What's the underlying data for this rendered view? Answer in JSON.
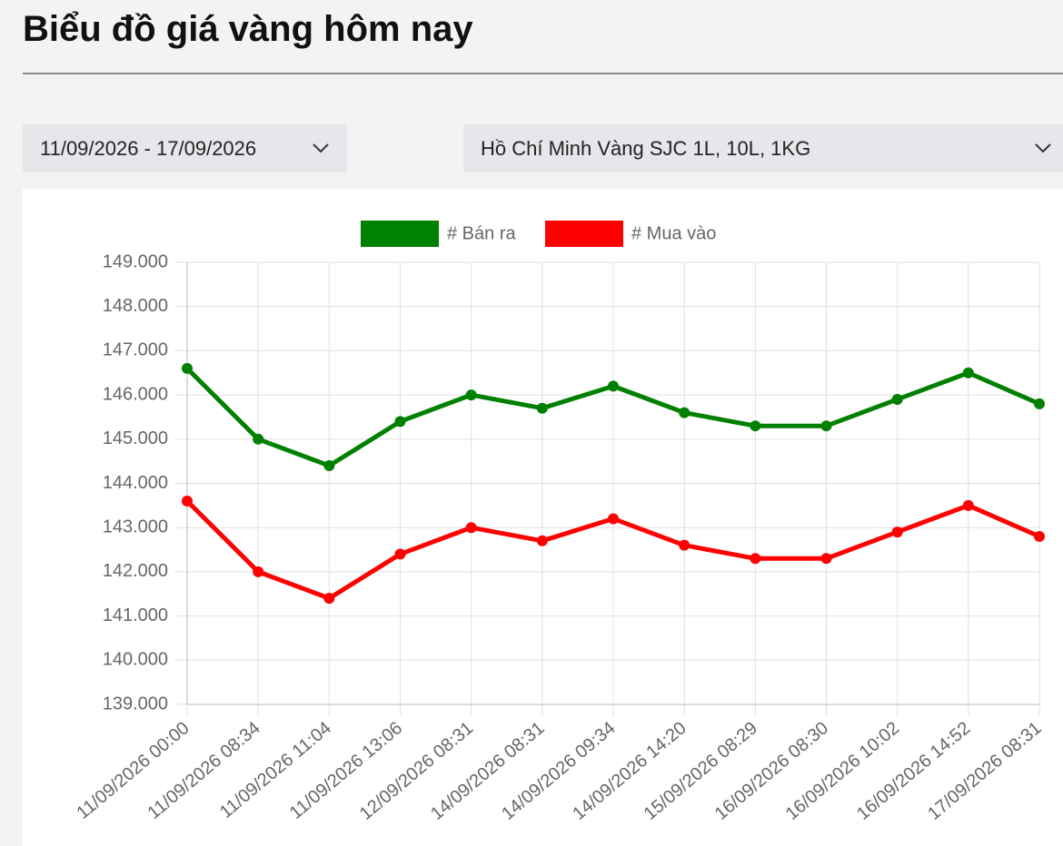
{
  "header": {
    "title": "Biểu đồ giá vàng hôm nay"
  },
  "filters": {
    "date_range": "11/09/2026 - 17/09/2026",
    "location": "Hồ Chí Minh Vàng SJC 1L, 10L, 1KG"
  },
  "chart_data": {
    "type": "line",
    "categories": [
      "11/09/2026 00:00",
      "11/09/2026 08:34",
      "11/09/2026 11:04",
      "11/09/2026 13:06",
      "12/09/2026 08:31",
      "14/09/2026 08:31",
      "14/09/2026 09:34",
      "14/09/2026 14:20",
      "15/09/2026 08:29",
      "16/09/2026 08:30",
      "16/09/2026 10:02",
      "16/09/2026 14:52",
      "17/09/2026 08:31"
    ],
    "series": [
      {
        "name": "# Bán ra",
        "color": "#008000",
        "values": [
          146600,
          145000,
          144400,
          145400,
          146000,
          145700,
          146200,
          145600,
          145300,
          145300,
          145900,
          146500,
          145800
        ]
      },
      {
        "name": "# Mua vào",
        "color": "#ff0000",
        "values": [
          143600,
          142000,
          141400,
          142400,
          143000,
          142700,
          143200,
          142600,
          142300,
          142300,
          142900,
          143500,
          142800
        ]
      }
    ],
    "ylim": [
      139000,
      149000
    ],
    "yticks": [
      {
        "value": 139000,
        "label": "139.000"
      },
      {
        "value": 140000,
        "label": "140.000"
      },
      {
        "value": 141000,
        "label": "141.000"
      },
      {
        "value": 142000,
        "label": "142.000"
      },
      {
        "value": 143000,
        "label": "143.000"
      },
      {
        "value": 144000,
        "label": "144.000"
      },
      {
        "value": 145000,
        "label": "145.000"
      },
      {
        "value": 146000,
        "label": "146.000"
      },
      {
        "value": 147000,
        "label": "147.000"
      },
      {
        "value": 148000,
        "label": "148.000"
      },
      {
        "value": 149000,
        "label": "149.000"
      }
    ],
    "grid": true,
    "legend": "top"
  }
}
